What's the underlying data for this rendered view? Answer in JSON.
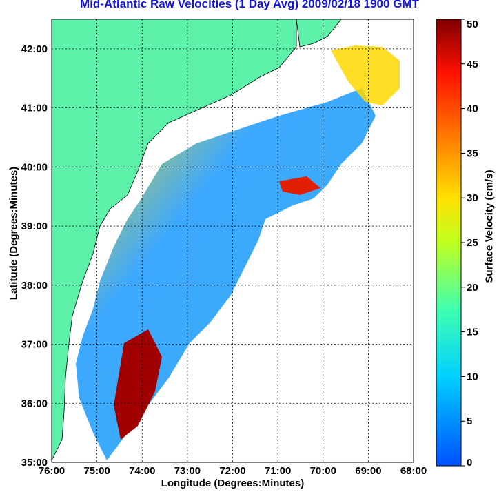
{
  "chart_data": {
    "type": "heatmap",
    "title": "Mid-Atlantic Raw Velocities (1 Day Avg) 2009/02/18 1900 GMT",
    "xlabel": "Longitude (Degrees:Minutes)",
    "ylabel": "Latitude (Degrees:Minutes)",
    "x_ticks": [
      "76:00",
      "75:00",
      "74:00",
      "73:00",
      "72:00",
      "71:00",
      "70:00",
      "69:00",
      "68:00"
    ],
    "y_ticks": [
      "42:00",
      "41:00",
      "40:00",
      "39:00",
      "38:00",
      "37:00",
      "36:00",
      "35:00"
    ],
    "xlim": [
      -76,
      -68
    ],
    "ylim": [
      35,
      42.5
    ],
    "grid": true,
    "colorbar": {
      "label": "Surface Velocity (cm/s)",
      "ticks": [
        "50",
        "45",
        "40",
        "35",
        "30",
        "25",
        "20",
        "15",
        "10",
        "5",
        "0"
      ],
      "range": [
        0,
        50
      ]
    },
    "colors": {
      "land": "#5cf0a8",
      "title": "#1515e0"
    }
  }
}
